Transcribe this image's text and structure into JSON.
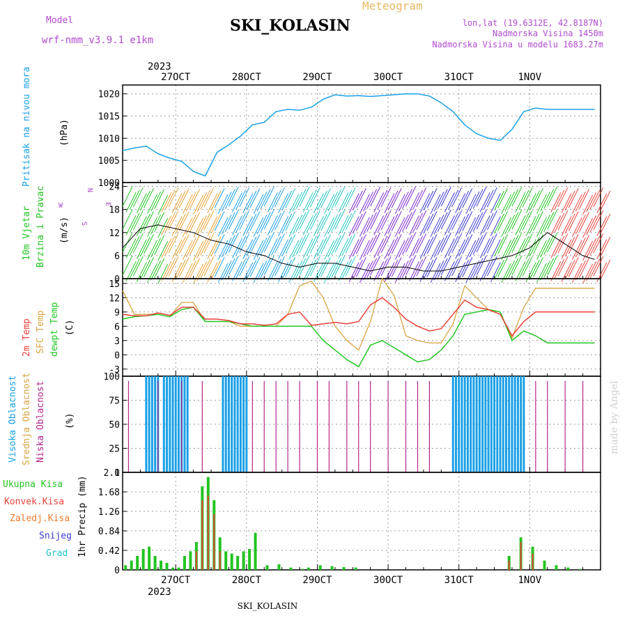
{
  "header": {
    "model_label": "Model",
    "model_name": "wrf-nmm_v3.9.1 e1km",
    "title": "SKI_KOLASIN",
    "subtitle": "Meteogram",
    "lonlat": "lon,lat (19.6312E, 42.8187N)",
    "altitude": "Nadmorska Visina 1450m",
    "model_altitude": "Nadmorska Visina u modelu 1683.27m",
    "footer_station": "SKI_KOLASIN",
    "watermark": "made by Angel",
    "year": "2023"
  },
  "colors": {
    "pressure": "#1aa0e6",
    "temp2m": "#e8413a",
    "sfc": "#d9a441",
    "dew": "#22c422",
    "high_cloud": "#1aa0e6",
    "mid_cloud": "#d9a441",
    "low_cloud": "#b5258c",
    "total_precip": "#22c422",
    "conv_precip": "#e8413a",
    "freezing": "#f07a2a",
    "snow": "#3a3ad0",
    "graupel": "#22c4c4",
    "purple_text": "#b04ad0"
  },
  "axes": {
    "date_ticks": [
      "27OCT",
      "28OCT",
      "29OCT",
      "30OCT",
      "31OCT",
      "1NOV"
    ]
  },
  "panels": {
    "pressure": {
      "label": "Pritisak na nivou mora",
      "unit": "(hPa)",
      "ticks": [
        "1000",
        "1005",
        "1010",
        "1015",
        "1020"
      ]
    },
    "wind": {
      "label1": "10m Vjetar",
      "label2": "Brzina i Pravac",
      "unit": "(m/s)",
      "ticks": [
        "0",
        "6",
        "12",
        "18",
        "24"
      ],
      "compass": [
        "N",
        "S",
        "E",
        "W"
      ]
    },
    "temp": {
      "label1": "2m Temp",
      "label2": "SFC Temp",
      "label3": "dewpt Temp",
      "unit": "(C)",
      "ticks": [
        "-3",
        "0",
        "3",
        "6",
        "9",
        "12",
        "15"
      ]
    },
    "cloud": {
      "label1": "Visoka Oblacnost",
      "label2": "Srednja Oblacnost",
      "label3": "Niska Oblacnost",
      "unit": "(%)",
      "ticks": [
        "0",
        "25",
        "50",
        "75",
        "100"
      ]
    },
    "precip": {
      "unit": "1hr Precip (mm)",
      "ticks": [
        "0",
        "0.42",
        "0.84",
        "1.26",
        "1.68",
        "2.1"
      ],
      "legend": [
        "Ukupna Kisa",
        "Konvek.Kisa",
        "Zaledj.Kisa",
        "Snijeg",
        "Grad"
      ]
    }
  },
  "chart_data": {
    "type": "line",
    "x_unit": "hours from 26OCT 18UTC",
    "pressure": {
      "ylim": [
        1000,
        1022
      ],
      "x": [
        0,
        4,
        8,
        12,
        16,
        20,
        24,
        28,
        32,
        36,
        40,
        44,
        48,
        52,
        56,
        60,
        64,
        68,
        72,
        76,
        80,
        84,
        88,
        92,
        96,
        100,
        104,
        108,
        112,
        116,
        120,
        124,
        128,
        132,
        136,
        140,
        144,
        148,
        152,
        156,
        160
      ],
      "y": [
        1007.2,
        1007.8,
        1008.2,
        1006.5,
        1005.5,
        1004.8,
        1002.5,
        1001.5,
        1006.8,
        1008.5,
        1010.5,
        1013.0,
        1013.6,
        1016.0,
        1016.5,
        1016.3,
        1017.0,
        1018.8,
        1019.8,
        1019.5,
        1019.6,
        1019.4,
        1019.6,
        1019.8,
        1020.0,
        1020.0,
        1019.5,
        1018.0,
        1016.0,
        1013.0,
        1011.0,
        1010.0,
        1009.5,
        1012.0,
        1016.0,
        1016.8,
        1016.5,
        1016.5,
        1016.5,
        1016.5,
        1016.5
      ]
    },
    "wind_speed": {
      "ylim": [
        0,
        25
      ],
      "x": [
        0,
        6,
        12,
        18,
        24,
        30,
        36,
        42,
        48,
        54,
        60,
        66,
        72,
        78,
        84,
        90,
        96,
        102,
        108,
        114,
        120,
        126,
        132,
        138,
        144,
        150,
        156,
        160
      ],
      "y": [
        8,
        13,
        14,
        13,
        12,
        10,
        9,
        7,
        6,
        4,
        3,
        4,
        4,
        3,
        2,
        3,
        3,
        2,
        2,
        3,
        4,
        5,
        6,
        8,
        12,
        9,
        6,
        5
      ]
    },
    "temperature": {
      "ylim": [
        -4.5,
        16
      ],
      "x": [
        0,
        4,
        8,
        12,
        16,
        20,
        24,
        28,
        32,
        36,
        40,
        44,
        48,
        52,
        56,
        60,
        64,
        68,
        72,
        76,
        80,
        84,
        88,
        92,
        96,
        100,
        104,
        108,
        112,
        116,
        120,
        124,
        128,
        132,
        136,
        140,
        144,
        148,
        152,
        156,
        160
      ],
      "temp2m": [
        8.5,
        8.2,
        8.2,
        8.8,
        8.3,
        10.0,
        10.0,
        7.5,
        7.5,
        7.2,
        6.5,
        6.5,
        6.2,
        6.5,
        8.5,
        9.0,
        6.2,
        6.5,
        6.8,
        6.5,
        7.0,
        10.5,
        12.0,
        10.0,
        7.5,
        6.0,
        5.0,
        5.5,
        8.5,
        11.5,
        10.0,
        9.5,
        8.5,
        4.0,
        7.0,
        9.0,
        9.0,
        9.0,
        9.0,
        9.0,
        9.0
      ],
      "sfc": [
        13.5,
        8.5,
        8.5,
        8.5,
        8.0,
        11.0,
        11.0,
        7.0,
        7.0,
        7.0,
        6.0,
        6.0,
        6.0,
        6.0,
        8.5,
        14.5,
        15.5,
        12.0,
        6.0,
        3.0,
        1.0,
        7.0,
        16.0,
        12.5,
        4.0,
        3.0,
        2.5,
        2.5,
        6.5,
        14.5,
        12.0,
        9.5,
        9.0,
        3.5,
        10.0,
        14.0,
        14.0,
        14.0,
        14.0,
        14.0,
        14.0
      ],
      "dew": [
        7.5,
        8.0,
        8.2,
        8.5,
        8.0,
        9.5,
        10.0,
        7.0,
        7.0,
        7.0,
        6.5,
        6.0,
        6.0,
        6.0,
        6.0,
        6.0,
        6.0,
        3.0,
        1.0,
        -1.0,
        -2.5,
        2.0,
        3.0,
        1.5,
        0.0,
        -1.5,
        -1.0,
        1.0,
        4.0,
        8.5,
        9.0,
        9.5,
        9.0,
        3.0,
        5.0,
        4.0,
        2.5,
        2.5,
        2.5,
        2.5,
        2.5
      ]
    },
    "cloud_cover": {
      "ylim": [
        0,
        100
      ],
      "high_blocks": [
        [
          8,
          12
        ],
        [
          14,
          22
        ],
        [
          34,
          42
        ],
        [
          112,
          136
        ]
      ],
      "low_spikes": [
        2,
        12,
        20,
        27,
        44,
        48,
        52,
        56,
        60,
        66,
        70,
        76,
        80,
        84,
        90,
        96,
        100,
        104,
        140,
        144,
        150,
        156
      ]
    },
    "precip": {
      "ylim": [
        0,
        2.1
      ],
      "x": [
        1,
        3,
        5,
        7,
        9,
        11,
        13,
        15,
        17,
        19,
        21,
        23,
        25,
        27,
        29,
        31,
        33,
        35,
        37,
        39,
        41,
        43,
        45,
        49,
        53,
        57,
        61,
        63,
        67,
        71,
        75,
        79,
        83,
        87,
        91,
        95,
        99,
        103,
        107,
        111,
        115,
        119,
        123,
        127,
        131,
        135,
        139,
        143,
        147,
        151,
        155,
        159
      ],
      "total": [
        0.1,
        0.2,
        0.3,
        0.45,
        0.5,
        0.3,
        0.2,
        0.15,
        0.05,
        0.05,
        0.3,
        0.4,
        0.6,
        1.8,
        2.0,
        1.5,
        0.7,
        0.4,
        0.35,
        0.3,
        0.4,
        0.45,
        0.8,
        0.1,
        0.12,
        0.05,
        0.02,
        0.05,
        0.1,
        0.08,
        0.06,
        0.05,
        0.0,
        0.0,
        0.0,
        0.0,
        0.0,
        0.0,
        0.0,
        0.0,
        0.0,
        0.0,
        0.0,
        0.0,
        0.3,
        0.7,
        0.5,
        0.2,
        0.1,
        0.05,
        0.02,
        0.0
      ],
      "convective": [
        0,
        0,
        0,
        0,
        0,
        0,
        0,
        0,
        0,
        0,
        0,
        0,
        0.4,
        1.5,
        1.6,
        1.2,
        0.4,
        0,
        0,
        0,
        0,
        0,
        0,
        0,
        0,
        0,
        0,
        0,
        0,
        0,
        0,
        0,
        0,
        0,
        0,
        0,
        0,
        0,
        0,
        0,
        0,
        0,
        0,
        0,
        0.2,
        0.6,
        0.35,
        0,
        0,
        0,
        0,
        0
      ]
    }
  }
}
